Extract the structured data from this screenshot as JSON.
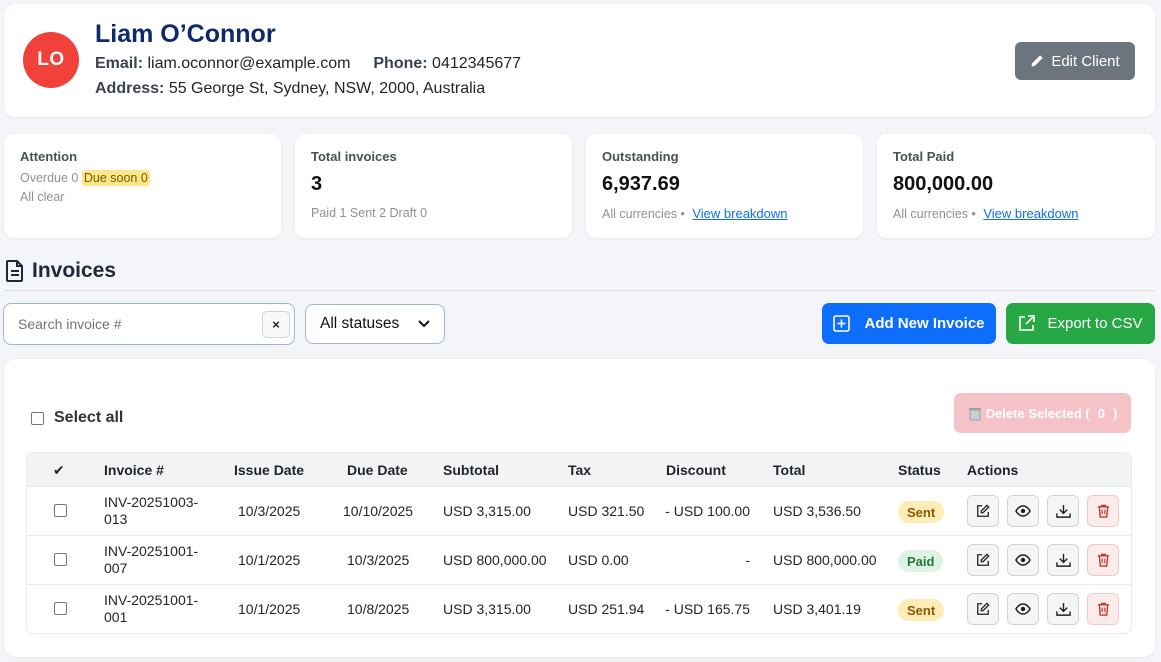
{
  "client": {
    "initials": "LO",
    "name": "Liam O’Connor",
    "email_label": "Email:",
    "email": "liam.oconnor@example.com",
    "phone_label": "Phone:",
    "phone": "0412345677",
    "address_label": "Address:",
    "address": "55 George St, Sydney, NSW, 2000, Australia",
    "edit_label": "Edit Client",
    "avatar_color": "#f0413b"
  },
  "stats": {
    "attention": {
      "label": "Attention",
      "overdue": "Overdue 0",
      "due_soon": "Due soon 0",
      "status": "All clear"
    },
    "total_invoices": {
      "label": "Total invoices",
      "value": "3",
      "sub": "Paid 1 Sent 2 Draft 0"
    },
    "outstanding": {
      "label": "Outstanding",
      "value": "6,937.69",
      "sub": "All currencies •",
      "link": "View breakdown"
    },
    "total_paid": {
      "label": "Total Paid",
      "value": "800,000.00",
      "sub": "All currencies •",
      "link": "View breakdown"
    }
  },
  "invoices_section": {
    "title": "Invoices",
    "search_placeholder": "Search invoice #",
    "clear_label": "×",
    "status_filter": "All statuses",
    "add_label": "Add New Invoice",
    "export_label": "Export to CSV",
    "select_all_label": "Select all",
    "delete_selected_label": "Delete Selected (",
    "delete_selected_count": "0",
    "delete_selected_close": ")"
  },
  "table": {
    "headers": [
      "✔",
      "Invoice #",
      "Issue Date",
      "Due Date",
      "Subtotal",
      "Tax",
      "Discount",
      "Total",
      "Status",
      "Actions"
    ],
    "rows": [
      {
        "invoice_line1": "INV-20251003-",
        "invoice_line2": "013",
        "issue": "10/3/2025",
        "due": "10/10/2025",
        "subtotal": "USD 3,315.00",
        "tax": "USD 321.50",
        "discount": "- USD 100.00",
        "total": "USD 3,536.50",
        "status": "Sent"
      },
      {
        "invoice_line1": "INV-20251001-",
        "invoice_line2": "007",
        "issue": "10/1/2025",
        "due": "10/3/2025",
        "subtotal": "USD 800,000.00",
        "tax": "USD 0.00",
        "discount": "-",
        "total": "USD 800,000.00",
        "status": "Paid"
      },
      {
        "invoice_line1": "INV-20251001-",
        "invoice_line2": "001",
        "issue": "10/1/2025",
        "due": "10/8/2025",
        "subtotal": "USD 3,315.00",
        "tax": "USD 251.94",
        "discount": "- USD 165.75",
        "total": "USD 3,401.19",
        "status": "Sent"
      }
    ]
  },
  "colors": {
    "primary": "#0d6efd",
    "success": "#28a745",
    "secondary": "#6c757d",
    "name": "#0d2a6b"
  }
}
